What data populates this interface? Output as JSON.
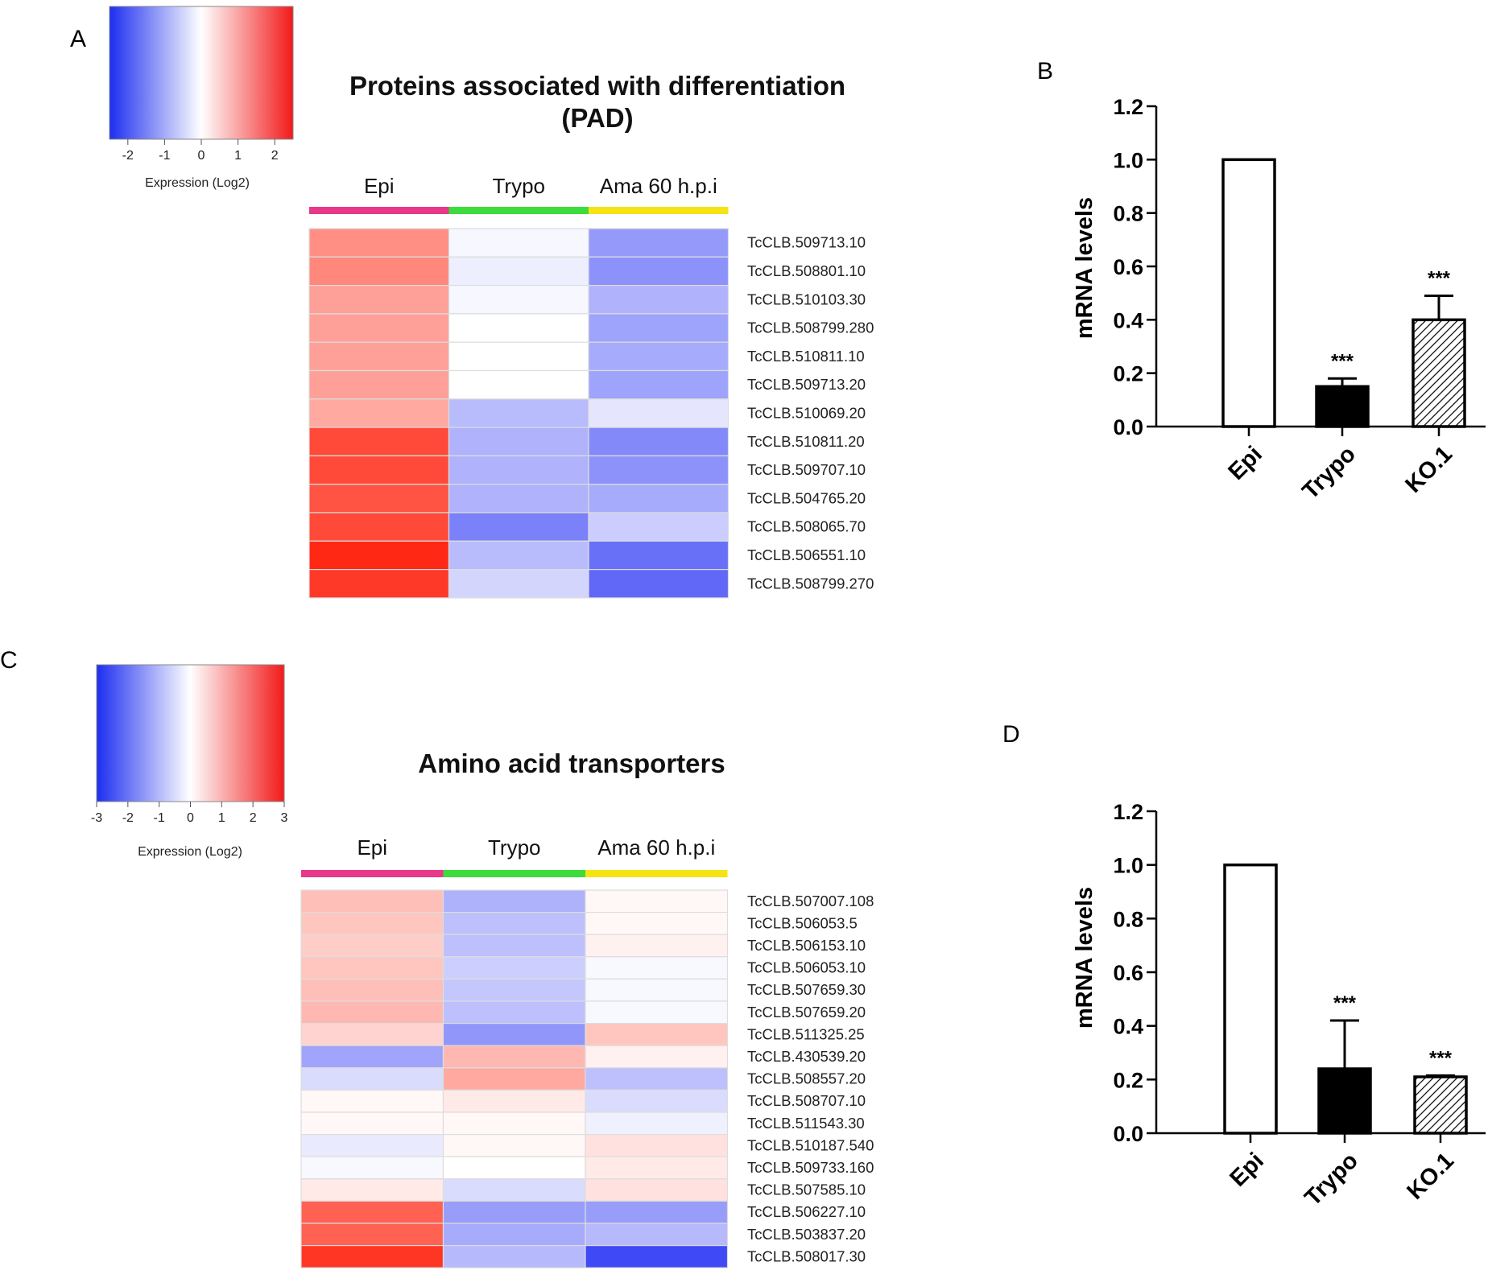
{
  "panels": {
    "A": "A",
    "B": "B",
    "C": "C",
    "D": "D"
  },
  "chart_data": [
    {
      "panel": "A",
      "type": "heatmap",
      "title_line1": "Proteins associated with differentiation",
      "title_line2": "(PAD)",
      "columns": [
        "Epi",
        "Trypo",
        "Ama 60 h.p.i"
      ],
      "column_colors": [
        "#e8388a",
        "#3ddc3d",
        "#f5e414"
      ],
      "legend": {
        "ticks": [
          "-2",
          "-1",
          "0",
          "1",
          "2"
        ],
        "range": [
          -2.5,
          2.5
        ],
        "title": "Expression (Log2)"
      },
      "rows": [
        {
          "gene": "TcCLB.509713.10",
          "values": [
            1.3,
            -0.1,
            -1.2
          ]
        },
        {
          "gene": "TcCLB.508801.10",
          "values": [
            1.4,
            -0.2,
            -1.3
          ]
        },
        {
          "gene": "TcCLB.510103.30",
          "values": [
            1.1,
            -0.1,
            -0.9
          ]
        },
        {
          "gene": "TcCLB.508799.280",
          "values": [
            1.1,
            0.0,
            -1.1
          ]
        },
        {
          "gene": "TcCLB.510811.10",
          "values": [
            1.1,
            0.0,
            -1.0
          ]
        },
        {
          "gene": "TcCLB.509713.20",
          "values": [
            1.1,
            0.0,
            -1.1
          ]
        },
        {
          "gene": "TcCLB.510069.20",
          "values": [
            1.0,
            -0.8,
            -0.3
          ]
        },
        {
          "gene": "TcCLB.510811.20",
          "values": [
            2.1,
            -0.9,
            -1.4
          ]
        },
        {
          "gene": "TcCLB.509707.10",
          "values": [
            2.1,
            -0.9,
            -1.3
          ]
        },
        {
          "gene": "TcCLB.504765.20",
          "values": [
            2.0,
            -0.9,
            -1.0
          ]
        },
        {
          "gene": "TcCLB.508065.70",
          "values": [
            2.1,
            -1.5,
            -0.6
          ]
        },
        {
          "gene": "TcCLB.506551.10",
          "values": [
            2.5,
            -0.8,
            -1.7
          ]
        },
        {
          "gene": "TcCLB.508799.270",
          "values": [
            2.3,
            -0.5,
            -1.8
          ]
        }
      ]
    },
    {
      "panel": "B",
      "type": "bar",
      "categories": [
        "Epi",
        "Trypo",
        "KO.1"
      ],
      "values": [
        1.0,
        0.15,
        0.4
      ],
      "errors": [
        0.0,
        0.03,
        0.09
      ],
      "significance": [
        "",
        "***",
        "***"
      ],
      "ylabel": "mRNA levels",
      "ylim": [
        0,
        1.2
      ],
      "yticks": [
        "0.0",
        "0.2",
        "0.4",
        "0.6",
        "0.8",
        "1.0",
        "1.2"
      ],
      "fills": [
        "white",
        "black",
        "hatched"
      ]
    },
    {
      "panel": "C",
      "type": "heatmap",
      "title_line1": "Amino acid transporters",
      "columns": [
        "Epi",
        "Trypo",
        "Ama 60 h.p.i"
      ],
      "column_colors": [
        "#e8388a",
        "#3ddc3d",
        "#f5e414"
      ],
      "legend": {
        "ticks": [
          "-3",
          "-2",
          "-1",
          "0",
          "1",
          "2",
          "3"
        ],
        "range": [
          -3,
          3
        ],
        "title": "Expression (Log2)"
      },
      "rows": [
        {
          "gene": "TcCLB.507007.108",
          "values": [
            0.9,
            -1.1,
            0.1
          ]
        },
        {
          "gene": "TcCLB.506053.5",
          "values": [
            0.8,
            -0.9,
            0.1
          ]
        },
        {
          "gene": "TcCLB.506153.10",
          "values": [
            0.7,
            -0.9,
            0.2
          ]
        },
        {
          "gene": "TcCLB.506053.10",
          "values": [
            0.8,
            -0.7,
            -0.1
          ]
        },
        {
          "gene": "TcCLB.507659.30",
          "values": [
            0.9,
            -0.8,
            -0.1
          ]
        },
        {
          "gene": "TcCLB.507659.20",
          "values": [
            1.0,
            -0.9,
            -0.1
          ]
        },
        {
          "gene": "TcCLB.511325.25",
          "values": [
            0.6,
            -1.5,
            0.8
          ]
        },
        {
          "gene": "TcCLB.430539.20",
          "values": [
            -1.3,
            1.0,
            0.2
          ]
        },
        {
          "gene": "TcCLB.508557.20",
          "values": [
            -0.5,
            1.2,
            -0.9
          ]
        },
        {
          "gene": "TcCLB.508707.10",
          "values": [
            0.1,
            0.3,
            -0.5
          ]
        },
        {
          "gene": "TcCLB.511543.30",
          "values": [
            0.1,
            0.1,
            -0.2
          ]
        },
        {
          "gene": "TcCLB.510187.540",
          "values": [
            -0.3,
            0.1,
            0.4
          ]
        },
        {
          "gene": "TcCLB.509733.160",
          "values": [
            -0.1,
            0.0,
            0.3
          ]
        },
        {
          "gene": "TcCLB.507585.10",
          "values": [
            0.3,
            -0.5,
            0.4
          ]
        },
        {
          "gene": "TcCLB.506227.10",
          "values": [
            2.2,
            -1.4,
            -1.4
          ]
        },
        {
          "gene": "TcCLB.503837.20",
          "values": [
            2.2,
            -1.2,
            -1.0
          ]
        },
        {
          "gene": "TcCLB.508017.30",
          "values": [
            2.8,
            -1.0,
            -2.6
          ]
        }
      ]
    },
    {
      "panel": "D",
      "type": "bar",
      "categories": [
        "Epi",
        "Trypo",
        "KO.1"
      ],
      "values": [
        1.0,
        0.24,
        0.21
      ],
      "errors": [
        0.0,
        0.18,
        0.005
      ],
      "significance": [
        "",
        "***",
        "***"
      ],
      "ylabel": "mRNA levels",
      "ylim": [
        0,
        1.2
      ],
      "yticks": [
        "0.0",
        "0.2",
        "0.4",
        "0.6",
        "0.8",
        "1.0",
        "1.2"
      ],
      "fills": [
        "white",
        "black",
        "hatched"
      ]
    }
  ]
}
